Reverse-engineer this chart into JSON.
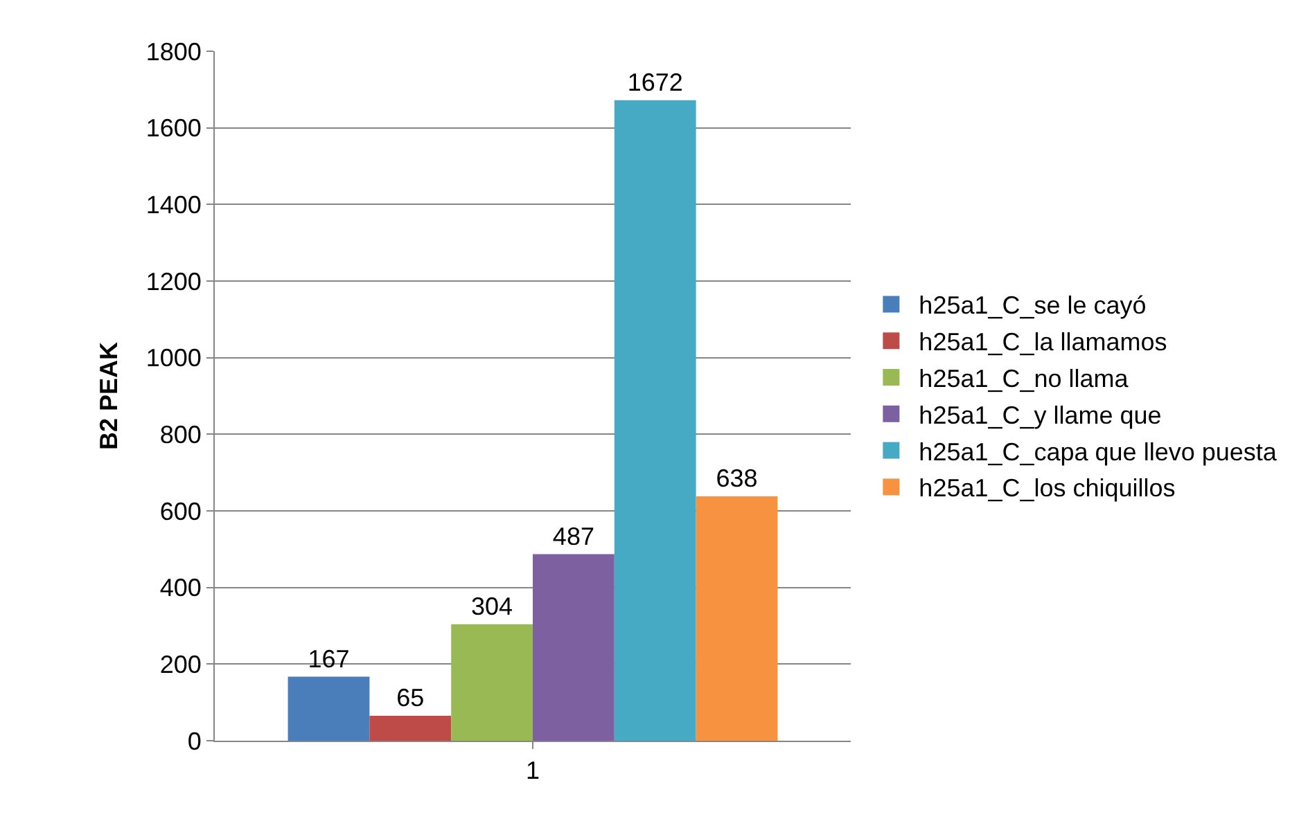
{
  "chart_data": {
    "type": "bar",
    "ylabel": "B2 PEAK",
    "categories": [
      "1"
    ],
    "series": [
      {
        "name": "h25a1_C_se le cayó",
        "color": "#4a7ebb",
        "values": [
          167
        ]
      },
      {
        "name": "h25a1_C_la llamamos",
        "color": "#be4b48",
        "values": [
          65
        ]
      },
      {
        "name": "h25a1_C_no llama",
        "color": "#98b954",
        "values": [
          304
        ]
      },
      {
        "name": "h25a1_C_y llame que",
        "color": "#7d60a0",
        "values": [
          487
        ]
      },
      {
        "name": "h25a1_C_capa que llevo puesta",
        "color": "#46aac5",
        "values": [
          1672
        ]
      },
      {
        "name": "h25a1_C_los chiquillos",
        "color": "#f69240",
        "values": [
          638
        ]
      }
    ],
    "ylim": [
      0,
      1800
    ],
    "yticks": [
      0,
      200,
      400,
      600,
      800,
      1000,
      1200,
      1400,
      1600,
      1800
    ],
    "grid": "y",
    "legend": "right",
    "data_labels": true
  }
}
